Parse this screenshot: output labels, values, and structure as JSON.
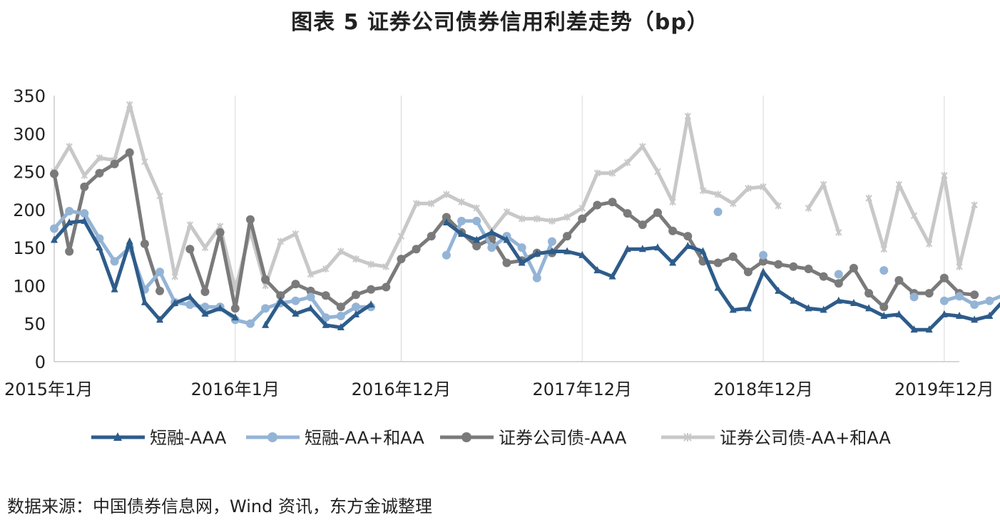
{
  "title": "图表 5 证券公司债券信用利差走势（bp）",
  "source": "数据来源：中国债券信息网，Wind 资讯，东方金诚整理",
  "chart_data": {
    "type": "line",
    "title": "图表 5 证券公司债券信用利差走势（bp）",
    "ylim": [
      0,
      350
    ],
    "yticks": [
      0,
      50,
      100,
      150,
      200,
      250,
      300,
      350
    ],
    "x_tick_labels": [
      {
        "i": 0,
        "label": "2015年1月"
      },
      {
        "i": 12,
        "label": "2016年1月"
      },
      {
        "i": 23,
        "label": "2016年12月"
      },
      {
        "i": 35,
        "label": "2017年12月"
      },
      {
        "i": 47,
        "label": "2018年12月"
      },
      {
        "i": 59,
        "label": "2019年12月"
      }
    ],
    "x_range": [
      0,
      60
    ],
    "grid": "vertical",
    "legend_position": "bottom",
    "series": [
      {
        "name": "短融-AAA",
        "color": "#2E5C8A",
        "marker": "triangle",
        "values": [
          160,
          183,
          185,
          150,
          95,
          158,
          78,
          55,
          77,
          85,
          63,
          70,
          58,
          null,
          48,
          80,
          63,
          70,
          48,
          45,
          62,
          75,
          null,
          null,
          null,
          null,
          183,
          168,
          160,
          170,
          160,
          130,
          142,
          145,
          145,
          140,
          120,
          112,
          148,
          148,
          150,
          130,
          152,
          145,
          97,
          68,
          70,
          118,
          93,
          80,
          70,
          68,
          80,
          77,
          70,
          60,
          62,
          42,
          42,
          62,
          60,
          55,
          60,
          82
        ]
      },
      {
        "name": "短融-AA+和AA",
        "color": "#94B4D6",
        "marker": "circle",
        "values": [
          175,
          198,
          195,
          162,
          132,
          150,
          95,
          118,
          78,
          75,
          72,
          72,
          55,
          50,
          70,
          77,
          80,
          85,
          58,
          60,
          72,
          72,
          null,
          null,
          null,
          null,
          140,
          185,
          185,
          150,
          165,
          150,
          110,
          158,
          null,
          null,
          null,
          null,
          null,
          null,
          null,
          null,
          null,
          null,
          197,
          null,
          null,
          140,
          null,
          null,
          null,
          null,
          115,
          null,
          null,
          120,
          null,
          85,
          null,
          80,
          86,
          75,
          80,
          88
        ]
      },
      {
        "name": "证券公司债-AAA",
        "color": "#7A7A7A",
        "marker": "circle",
        "values": [
          247,
          145,
          230,
          248,
          260,
          275,
          155,
          93,
          null,
          148,
          92,
          170,
          70,
          187,
          108,
          87,
          102,
          93,
          87,
          72,
          88,
          95,
          98,
          135,
          148,
          165,
          190,
          170,
          152,
          162,
          130,
          133,
          143,
          143,
          165,
          188,
          206,
          210,
          195,
          180,
          196,
          172,
          165,
          132,
          130,
          138,
          118,
          132,
          128,
          125,
          122,
          112,
          103,
          123,
          90,
          72,
          107,
          90,
          90,
          110,
          90,
          88
        ]
      },
      {
        "name": "证券公司债-AA+和AA",
        "color": "#C8C8C8",
        "marker": "x",
        "values": [
          250,
          283,
          245,
          268,
          265,
          338,
          263,
          218,
          112,
          180,
          150,
          178,
          95,
          172,
          100,
          158,
          168,
          115,
          122,
          145,
          135,
          128,
          125,
          165,
          208,
          208,
          220,
          210,
          202,
          172,
          197,
          188,
          188,
          185,
          190,
          202,
          248,
          248,
          262,
          283,
          250,
          210,
          323,
          225,
          220,
          208,
          228,
          230,
          205,
          null,
          202,
          233,
          170,
          null,
          215,
          148,
          233,
          192,
          155,
          245,
          125,
          206
        ]
      }
    ]
  }
}
